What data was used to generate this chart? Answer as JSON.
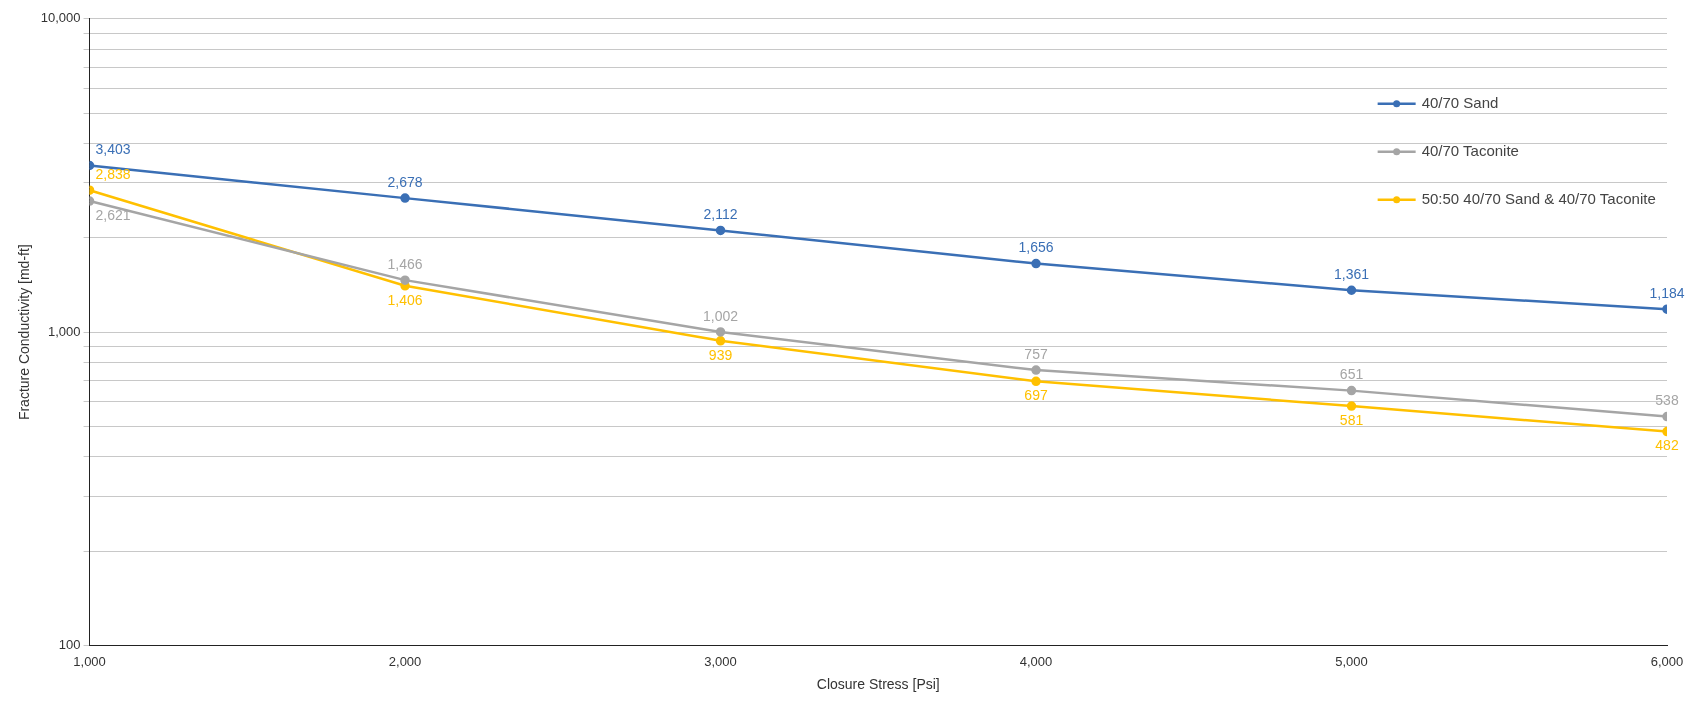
{
  "chart_data": {
    "type": "line",
    "xlabel": "Closure Stress [Psi]",
    "ylabel": "Fracture Conductivity [md-ft]",
    "x": [
      1000,
      2000,
      3000,
      4000,
      5000,
      6000
    ],
    "series": [
      {
        "name": "40/70 Sand",
        "color": "#3a6fb5",
        "values": [
          3403,
          2678,
          2112,
          1656,
          1361,
          1184
        ],
        "value_labels": [
          "3,403",
          "2,678",
          "2,112",
          "1,656",
          "1,361",
          "1,184"
        ]
      },
      {
        "name": "40/70 Taconite",
        "color": "#a5a5a5",
        "values": [
          2621,
          1466,
          1002,
          757,
          651,
          538
        ],
        "value_labels": [
          "2,621",
          "1,466",
          "1,002",
          "757",
          "651",
          "538"
        ]
      },
      {
        "name": "50:50 40/70 Sand & 40/70 Taconite",
        "color": "#ffc000",
        "values": [
          2838,
          1406,
          939,
          697,
          581,
          482
        ],
        "value_labels": [
          "2,838",
          "1,406",
          "939",
          "697",
          "581",
          "482"
        ]
      }
    ],
    "log": "y",
    "xlim": [
      1000,
      6000
    ],
    "xticks": [
      {
        "value": 1000,
        "label": "1,000"
      },
      {
        "value": 2000,
        "label": "2,000"
      },
      {
        "value": 3000,
        "label": "3,000"
      },
      {
        "value": 4000,
        "label": "4,000"
      },
      {
        "value": 5000,
        "label": "5,000"
      },
      {
        "value": 6000,
        "label": "6,000"
      }
    ],
    "ylim": [
      100,
      10000
    ],
    "yticks": [
      100,
      {
        "value": 200,
        "label": null
      },
      {
        "value": 300,
        "label": null
      },
      {
        "value": 400,
        "label": null
      },
      {
        "value": 500,
        "label": null
      },
      {
        "value": 600,
        "label": null
      },
      {
        "value": 700,
        "label": null
      },
      {
        "value": 800,
        "label": null
      },
      {
        "value": 900,
        "label": null
      },
      {
        "value": 1000,
        "label": "1,000"
      },
      {
        "value": 2000,
        "label": null
      },
      {
        "value": 3000,
        "label": null
      },
      {
        "value": 4000,
        "label": null
      },
      {
        "value": 5000,
        "label": null
      },
      {
        "value": 6000,
        "label": null
      },
      {
        "value": 7000,
        "label": null
      },
      {
        "value": 8000,
        "label": null
      },
      {
        "value": 9000,
        "label": null
      },
      {
        "value": 10000,
        "label": "10,000"
      }
    ],
    "grid": "y",
    "legend": "top right",
    "marker": "circle",
    "line_style": "solid"
  }
}
